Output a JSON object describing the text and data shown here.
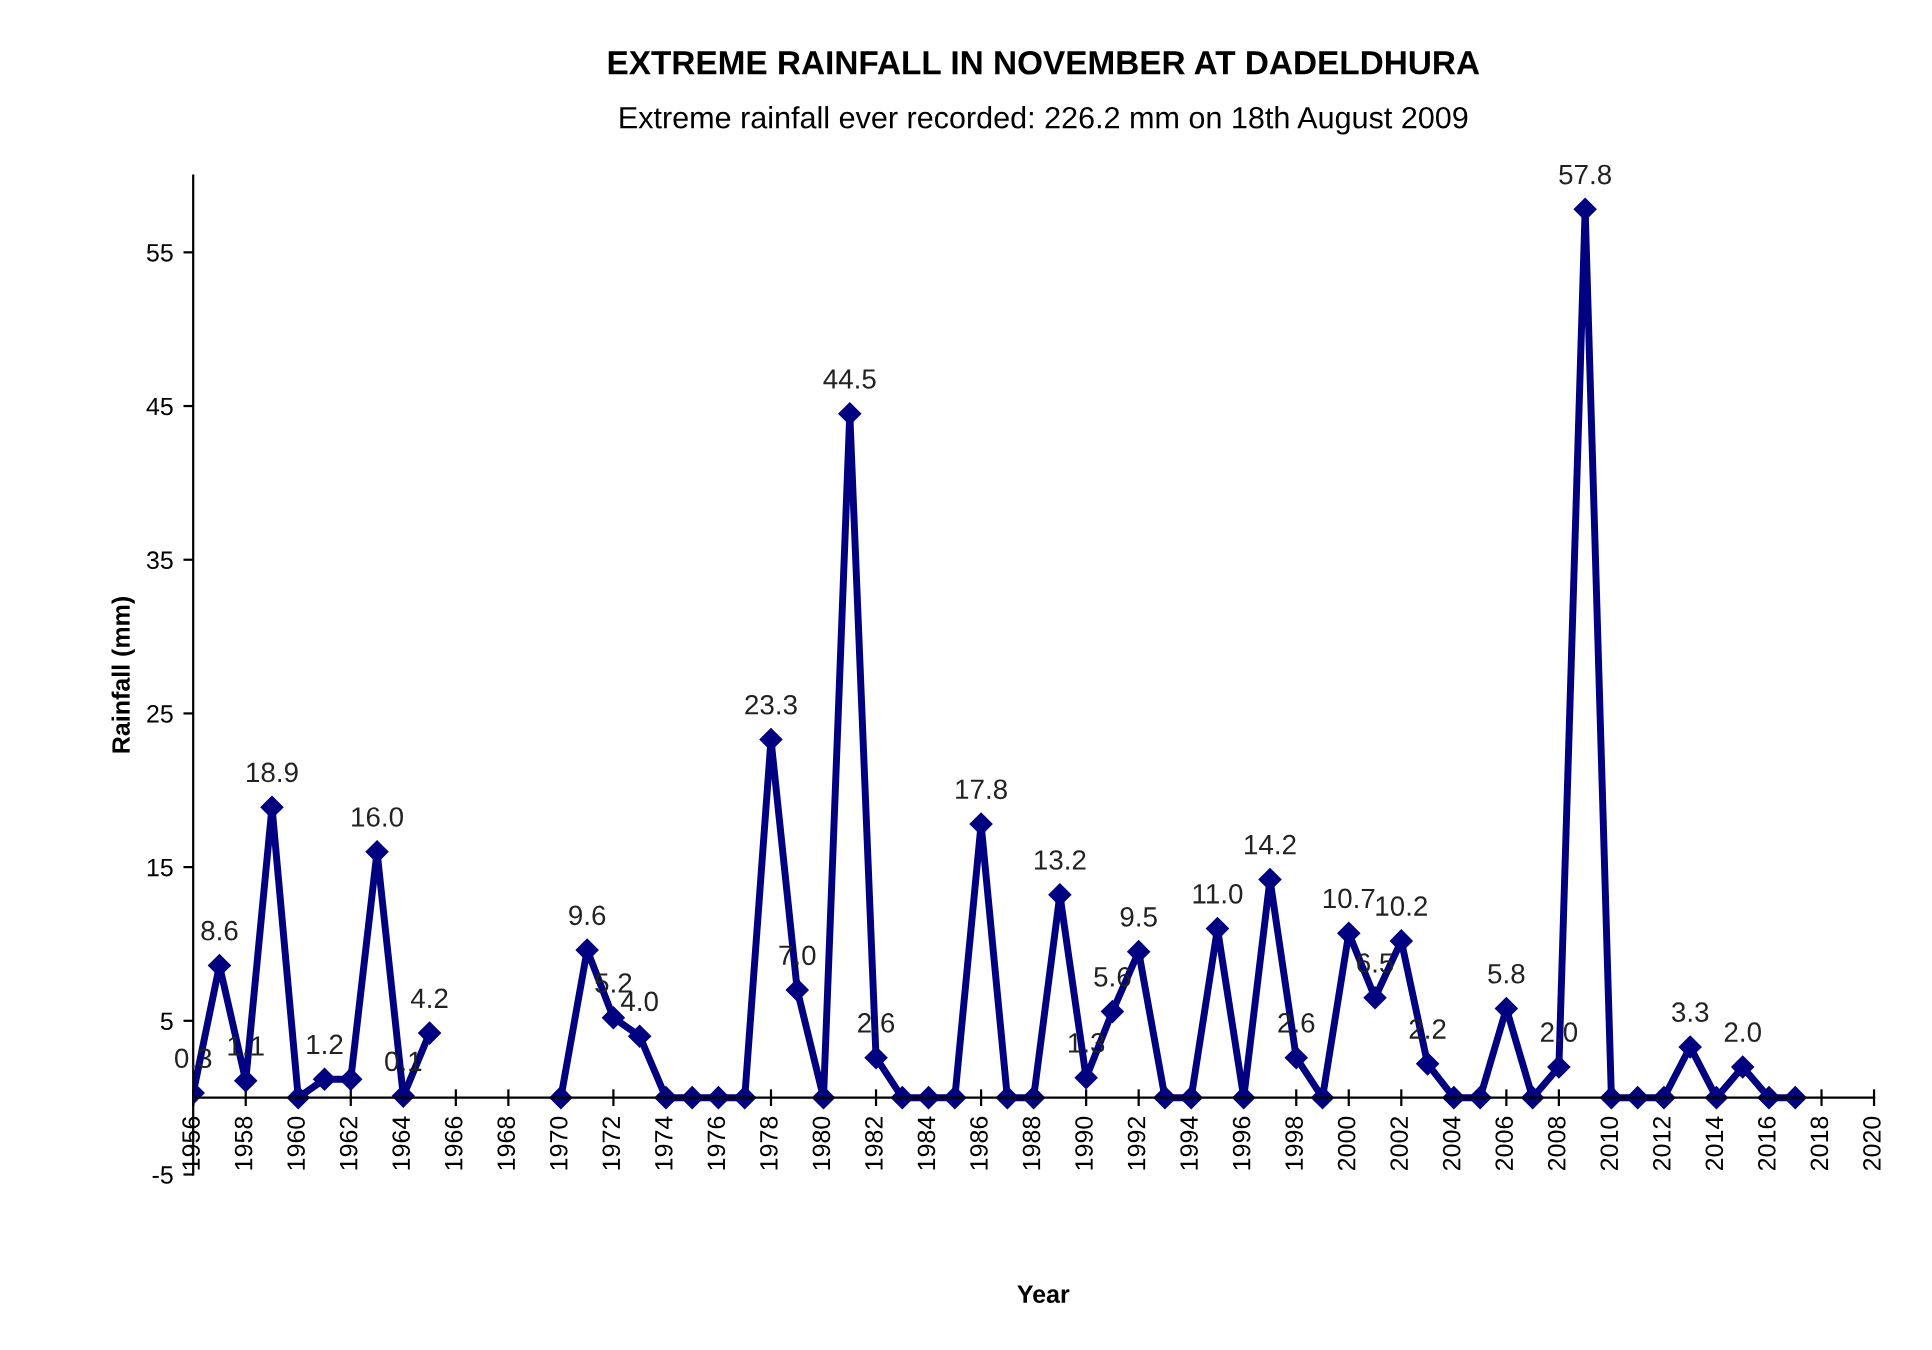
{
  "chart_data": {
    "type": "line",
    "title": "EXTREME RAINFALL IN NOVEMBER AT DADELDHURA",
    "subtitle": "Extreme rainfall ever recorded: 226.2 mm on 18th August 2009",
    "xlabel": "Year",
    "ylabel": "Rainfall (mm)",
    "x": [
      1956,
      1957,
      1958,
      1959,
      1960,
      1961,
      1962,
      1963,
      1964,
      1965,
      1966,
      1967,
      1968,
      1969,
      1970,
      1971,
      1972,
      1973,
      1974,
      1975,
      1976,
      1977,
      1978,
      1979,
      1980,
      1981,
      1982,
      1983,
      1984,
      1985,
      1986,
      1987,
      1988,
      1989,
      1990,
      1991,
      1992,
      1993,
      1994,
      1995,
      1996,
      1997,
      1998,
      1999,
      2000,
      2001,
      2002,
      2003,
      2004,
      2005,
      2006,
      2007,
      2008,
      2009,
      2010,
      2011,
      2012,
      2013,
      2014,
      2015,
      2016,
      2017
    ],
    "series": [
      {
        "color": "#000080",
        "values": [
          0.3,
          8.6,
          1.1,
          18.9,
          0,
          1.2,
          1.2,
          16.0,
          0.1,
          4.2,
          null,
          null,
          null,
          null,
          0,
          9.6,
          5.2,
          4.0,
          0,
          0,
          0,
          0,
          23.3,
          7.0,
          0,
          44.5,
          2.6,
          0,
          0,
          0,
          17.8,
          0,
          0,
          13.2,
          1.3,
          5.6,
          9.5,
          0,
          0,
          11.0,
          0,
          14.2,
          2.6,
          0,
          10.7,
          6.5,
          10.2,
          2.2,
          0,
          0,
          5.8,
          0,
          2.0,
          57.8,
          0,
          0,
          0,
          3.3,
          0,
          2.0,
          0,
          0
        ],
        "value_labels": [
          "0.3",
          "8.6",
          "1.1",
          "18.9",
          null,
          "1.2",
          null,
          "16.0",
          "0.1",
          "4.2",
          null,
          null,
          null,
          null,
          null,
          "9.6",
          "5.2",
          "4.0",
          null,
          null,
          null,
          null,
          "23.3",
          "7.0",
          null,
          "44.5",
          "2.6",
          null,
          null,
          null,
          "17.8",
          null,
          null,
          "13.2",
          "1.3",
          "5.6",
          "9.5",
          null,
          null,
          "11.0",
          null,
          "14.2",
          "2.6",
          null,
          "10.7",
          "6.5",
          "10.2",
          "2.2",
          null,
          null,
          "5.8",
          null,
          "2.0",
          "57.8",
          null,
          null,
          null,
          "3.3",
          null,
          "2.0",
          null,
          null
        ]
      }
    ],
    "xlim": [
      1956,
      2020
    ],
    "xticks": [
      1956,
      1958,
      1960,
      1962,
      1964,
      1966,
      1968,
      1970,
      1972,
      1974,
      1976,
      1978,
      1980,
      1982,
      1984,
      1986,
      1988,
      1990,
      1992,
      1994,
      1996,
      1998,
      2000,
      2002,
      2004,
      2006,
      2008,
      2010,
      2012,
      2014,
      2016,
      2018,
      2020
    ],
    "ylim": [
      -5,
      60
    ],
    "yticks": [
      -5,
      5,
      15,
      25,
      35,
      45,
      55
    ],
    "marker": "diamond",
    "line_style": "solid",
    "grid": false,
    "legend": false
  }
}
